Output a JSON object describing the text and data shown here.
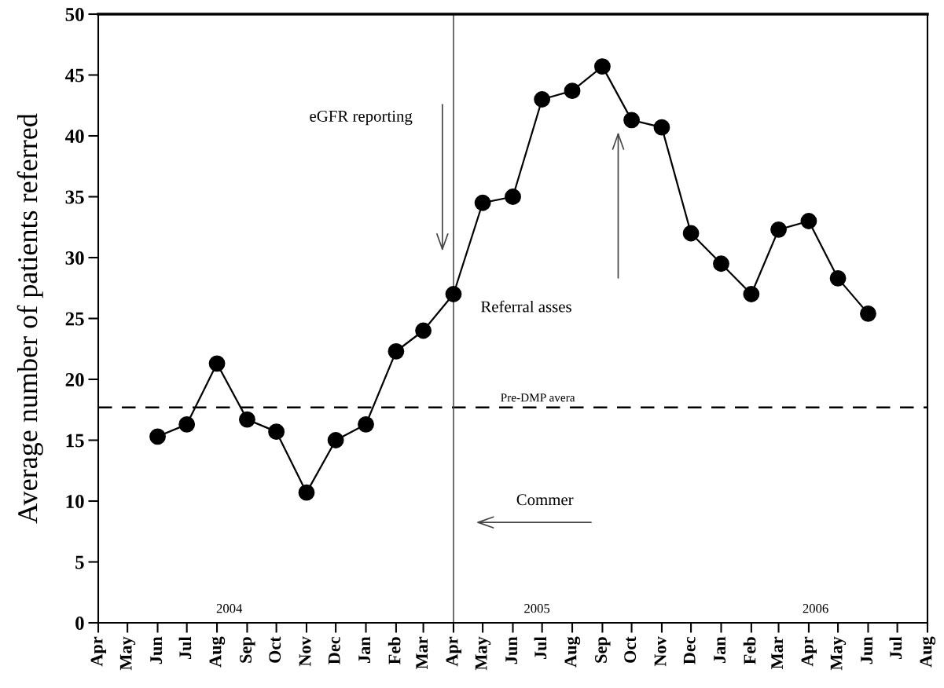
{
  "chart_data": {
    "type": "line",
    "ylabel": "Average number of patients referred",
    "x": [
      "2004-06",
      "2004-07",
      "2004-08",
      "2004-09",
      "2004-10",
      "2004-11",
      "2004-12",
      "2005-01",
      "2005-02",
      "2005-03",
      "2005-04",
      "2005-05",
      "2005-06",
      "2005-07",
      "2005-08",
      "2005-09",
      "2005-10",
      "2005-11",
      "2005-12",
      "2006-01",
      "2006-02",
      "2006-03",
      "2006-04",
      "2006-05",
      "2006-06"
    ],
    "series": [
      {
        "color": "#000000",
        "values": [
          15.3,
          16.3,
          21.3,
          16.7,
          15.7,
          10.7,
          15.0,
          16.3,
          22.3,
          24.0,
          27.0,
          34.5,
          35.0,
          43.0,
          43.7,
          45.7,
          41.3,
          40.7,
          32.0,
          29.5,
          27.0,
          32.3,
          33.0,
          28.3,
          25.4
        ]
      }
    ],
    "marker": "circle",
    "line_style": "solid",
    "grid": false,
    "legend": false,
    "xlim": [
      "2004-04",
      "2006-08"
    ],
    "xticks": [
      {
        "value": "2004-04",
        "label": "Apr"
      },
      {
        "value": "2004-05",
        "label": "May"
      },
      {
        "value": "2004-06",
        "label": "Jun"
      },
      {
        "value": "2004-07",
        "label": "Jul"
      },
      {
        "value": "2004-08",
        "label": "Aug"
      },
      {
        "value": "2004-09",
        "label": "Sep"
      },
      {
        "value": "2004-10",
        "label": "Oct"
      },
      {
        "value": "2004-11",
        "label": "Nov"
      },
      {
        "value": "2004-12",
        "label": "Dec"
      },
      {
        "value": "2005-01",
        "label": "Jan"
      },
      {
        "value": "2005-02",
        "label": "Feb"
      },
      {
        "value": "2005-03",
        "label": "Mar"
      },
      {
        "value": "2005-04",
        "label": "Apr"
      },
      {
        "value": "2005-05",
        "label": "May"
      },
      {
        "value": "2005-06",
        "label": "Jun"
      },
      {
        "value": "2005-07",
        "label": "Jul"
      },
      {
        "value": "2005-08",
        "label": "Aug"
      },
      {
        "value": "2005-09",
        "label": "Sep"
      },
      {
        "value": "2005-10",
        "label": "Oct"
      },
      {
        "value": "2005-11",
        "label": "Nov"
      },
      {
        "value": "2005-12",
        "label": "Dec"
      },
      {
        "value": "2006-01",
        "label": "Jan"
      },
      {
        "value": "2006-02",
        "label": "Feb"
      },
      {
        "value": "2006-03",
        "label": "Mar"
      },
      {
        "value": "2006-04",
        "label": "Apr"
      },
      {
        "value": "2006-05",
        "label": "May"
      },
      {
        "value": "2006-06",
        "label": "Jun"
      },
      {
        "value": "2006-07",
        "label": "Jul"
      },
      {
        "value": "2006-08",
        "label": "Aug"
      }
    ],
    "ylim": [
      0,
      50
    ],
    "yticks": [
      0,
      5,
      10,
      15,
      20,
      25,
      30,
      35,
      40,
      45,
      50
    ],
    "ref_lines": [
      {
        "axis": "y",
        "value": 17.7,
        "label": "Pre-DMP avera",
        "color": "#000000",
        "line_style": "dashed"
      },
      {
        "axis": "x",
        "value": "2005-04",
        "color": "#444444",
        "line_style": "solid"
      }
    ],
    "annotations": [
      "eGFR reporting",
      "Referral asses",
      "Commer",
      "2004",
      "2005",
      "2006"
    ]
  }
}
